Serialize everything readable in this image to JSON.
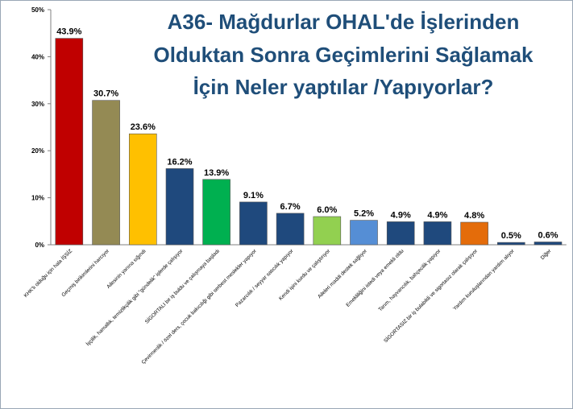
{
  "chart_data": {
    "type": "bar",
    "title": [
      "A36- Mağdurlar OHAL'de İşlerinden",
      "Olduktan Sonra Geçimlerini Sağlamak",
      "İçin Neler yaptılar /Yapıyorlar?"
    ],
    "xlabel": "",
    "ylabel": "",
    "ylim": [
      0,
      50
    ],
    "yticks": [
      "0%",
      "10%",
      "20%",
      "30%",
      "40%",
      "50%"
    ],
    "grid": false,
    "legend": "none",
    "categories": [
      "KHK'lı olduğu için hala İŞSİZ",
      "Geçmiş birikimlerini harcıyor",
      "Ailesinin yanına sığındı",
      "İşçilik, hamallık, temizlikçilik gibi \"gündelik\" işlerde çalışıyor",
      "SİGORTALI bir iş buldu ve çalışmaya başladı",
      "Çevirmenlik / özel ders, çocuk bakıcılığı gibi serbest meslekler yapıyor",
      "Pazarcılık / seyyar satıcılık yapıyor",
      "Kendi işini kurdu ve çalıştırıyor",
      "Aileleri maddi destek sağlıyor",
      "Emekliliğini istedi veya emekli oldu",
      "Tarım, hayvancılık, bahçecilik yapıyor",
      "SİGORTASIZ bir iş bulabildi ve sigortasız olarak çalışıyor",
      "Yardım kuruluşlarından yardım alıyor",
      "Diğer"
    ],
    "values": [
      43.9,
      30.7,
      23.6,
      16.2,
      13.9,
      9.1,
      6.7,
      6.0,
      5.2,
      4.9,
      4.9,
      4.8,
      0.5,
      0.6
    ],
    "value_labels": [
      "43.9%",
      "30.7%",
      "23.6%",
      "16.2%",
      "13.9%",
      "9.1%",
      "6.7%",
      "6.0%",
      "5.2%",
      "4.9%",
      "4.9%",
      "4.8%",
      "0.5%",
      "0.6%"
    ],
    "colors": [
      "#c00000",
      "#948a54",
      "#ffc000",
      "#1f497d",
      "#00b050",
      "#1f497d",
      "#1f497d",
      "#92d050",
      "#558ed5",
      "#1f497d",
      "#1f497d",
      "#e46c0a",
      "#1f497d",
      "#1f497d"
    ],
    "title_color": "#1f4e79"
  }
}
